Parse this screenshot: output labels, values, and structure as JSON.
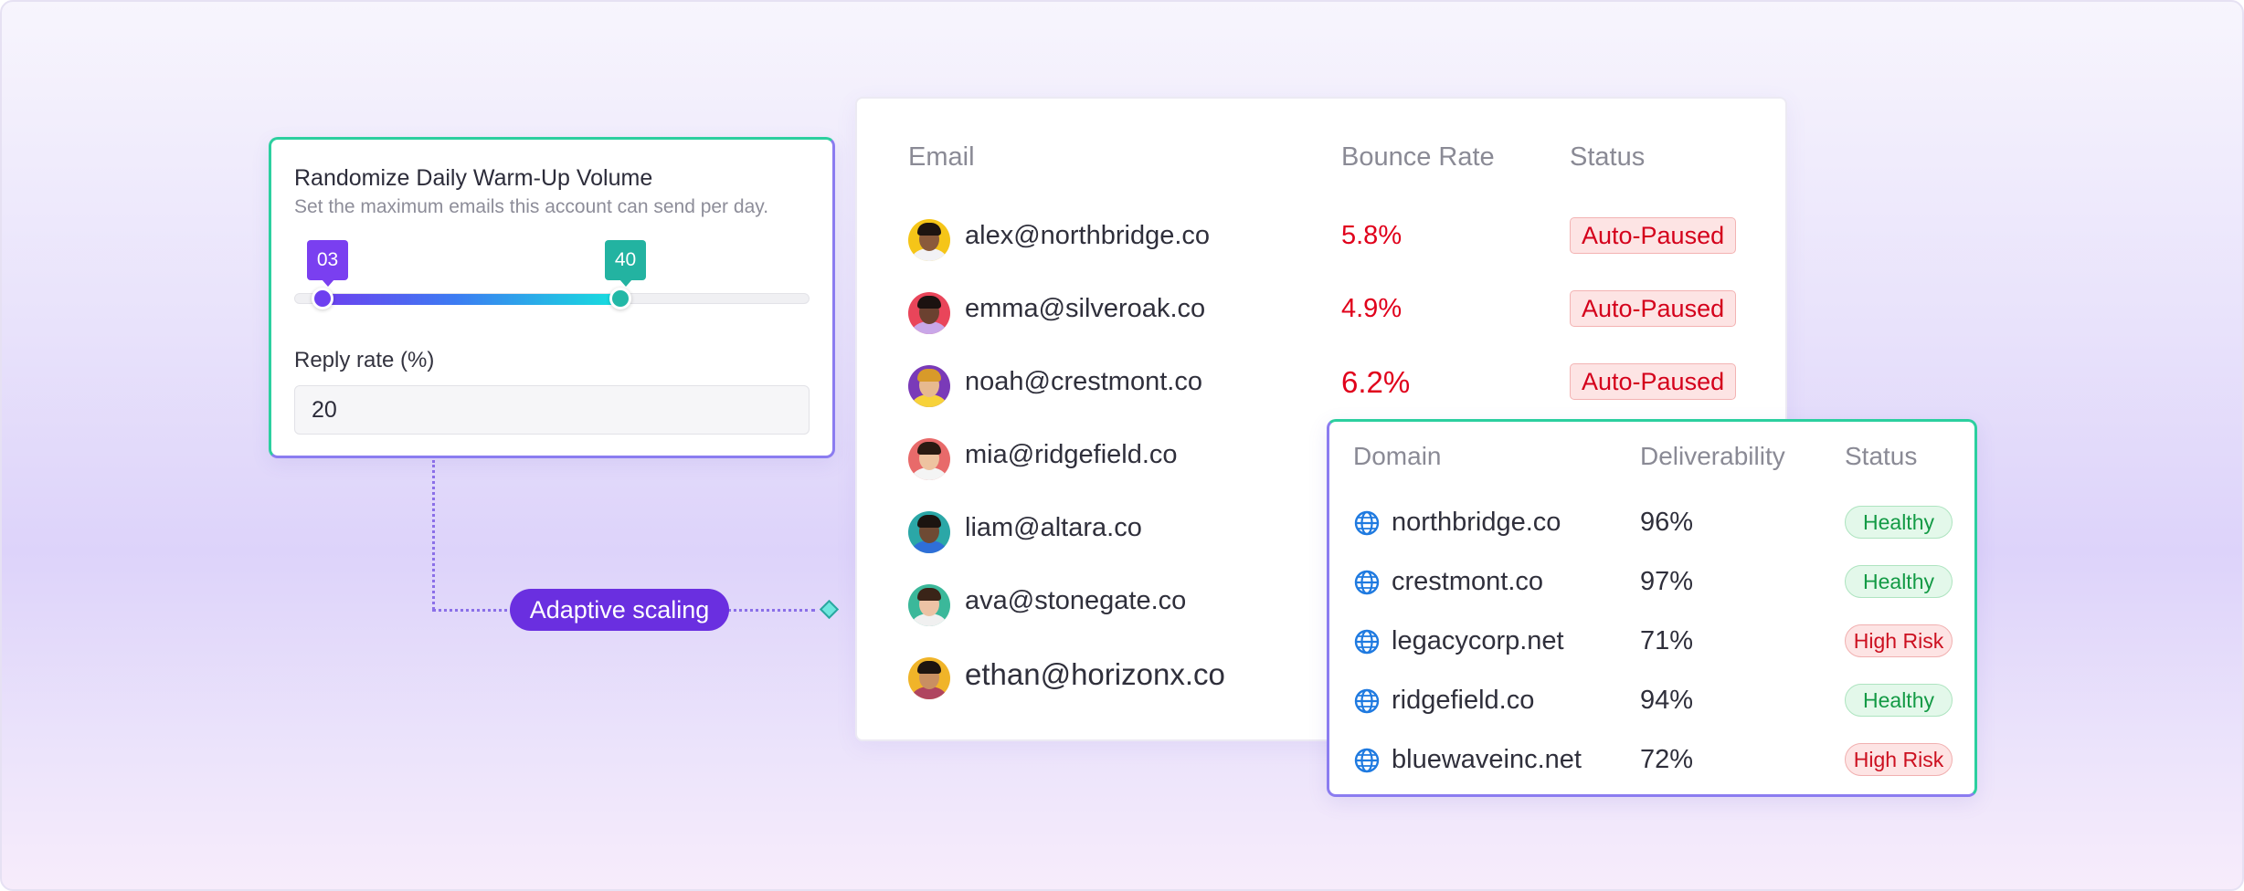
{
  "warmup": {
    "title": "Randomize Daily Warm-Up Volume",
    "subtitle": "Set the maximum emails this account can send per day.",
    "slider_min_label": "03",
    "slider_max_label": "40",
    "reply_label": "Reply rate (%)",
    "reply_value": "20"
  },
  "connector": {
    "label": "Adaptive scaling"
  },
  "accounts": {
    "headers": {
      "email": "Email",
      "bounce": "Bounce Rate",
      "status": "Status"
    },
    "rows": [
      {
        "email": "alex@northbridge.co",
        "bounce": "5.8%",
        "status": "Auto-Paused",
        "skin": "#8a5a3b",
        "hair": "#1d1410",
        "shirt": "#f2f2f5",
        "bg": "#f5c518"
      },
      {
        "email": "emma@silveroak.co",
        "bounce": "4.9%",
        "status": "Auto-Paused",
        "skin": "#6b4130",
        "hair": "#1b1210",
        "shirt": "#c9a7e8",
        "bg": "#e9455a"
      },
      {
        "email": "noah@crestmont.co",
        "bounce": "6.2%",
        "status": "Auto-Paused",
        "skin": "#e7b98f",
        "hair": "#d89a2a",
        "shirt": "#f7d23a",
        "bg": "#7a3ab8"
      },
      {
        "email": "mia@ridgefield.co",
        "bounce": "",
        "status": "",
        "skin": "#eec3a0",
        "hair": "#2a1a12",
        "shirt": "#f4f4f4",
        "bg": "#e86a6a"
      },
      {
        "email": "liam@altara.co",
        "bounce": "",
        "status": "",
        "skin": "#6e4a34",
        "hair": "#1b1410",
        "shirt": "#2f6fd8",
        "bg": "#2ba7a7"
      },
      {
        "email": "ava@stonegate.co",
        "bounce": "",
        "status": "",
        "skin": "#ecc3a5",
        "hair": "#3a2418",
        "shirt": "#f0f0f0",
        "bg": "#3bb89a"
      },
      {
        "email": "ethan@horizonx.co",
        "bounce": "",
        "status": "",
        "skin": "#c98f62",
        "hair": "#1e1410",
        "shirt": "#b0455f",
        "bg": "#f0b429"
      }
    ]
  },
  "domains": {
    "headers": {
      "domain": "Domain",
      "deliverability": "Deliverability",
      "status": "Status"
    },
    "rows": [
      {
        "domain": "northbridge.co",
        "deliverability": "96%",
        "status": "Healthy",
        "kind": "healthy"
      },
      {
        "domain": "crestmont.co",
        "deliverability": "97%",
        "status": "Healthy",
        "kind": "healthy"
      },
      {
        "domain": "legacycorp.net",
        "deliverability": "71%",
        "status": "High Risk",
        "kind": "risk"
      },
      {
        "domain": "ridgefield.co",
        "deliverability": "94%",
        "status": "Healthy",
        "kind": "healthy"
      },
      {
        "domain": "bluewaveinc.net",
        "deliverability": "72%",
        "status": "High Risk",
        "kind": "risk"
      }
    ]
  }
}
